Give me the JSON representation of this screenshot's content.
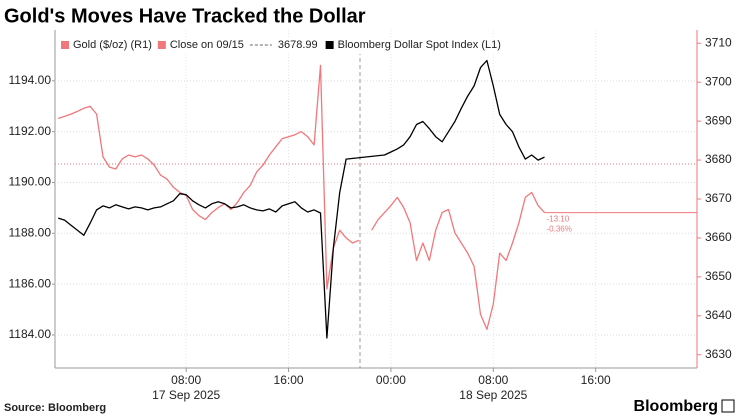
{
  "chart_data": {
    "type": "line",
    "title": "Gold's Moves Have Tracked the Dollar",
    "source": "Source: Bloomberg",
    "brand": "Bloomberg",
    "xlim": [
      "2025-09-16T21:45",
      "2025-09-18T23:55"
    ],
    "xticks": [
      {
        "value": "2025-09-17T08:00",
        "label": "08:00"
      },
      {
        "value": "2025-09-17T16:00",
        "label": "16:00"
      },
      {
        "value": "2025-09-18T00:00",
        "label": "00:00"
      },
      {
        "value": "2025-09-18T08:00",
        "label": "08:00"
      },
      {
        "value": "2025-09-18T16:00",
        "label": "16:00"
      }
    ],
    "date_labels": [
      {
        "value": "2025-09-17T08:00",
        "label": "17 Sep 2025"
      },
      {
        "value": "2025-09-18T08:00",
        "label": "18 Sep 2025"
      }
    ],
    "ylim": [
      1182.7,
      1196
    ],
    "yticks": [
      {
        "value": 1184,
        "label": "1184.00"
      },
      {
        "value": 1186,
        "label": "1186.00"
      },
      {
        "value": 1188,
        "label": "1188.00"
      },
      {
        "value": 1190,
        "label": "1190.00"
      },
      {
        "value": 1192,
        "label": "1192.00"
      },
      {
        "value": 1194,
        "label": "1194.00"
      }
    ],
    "y2lim": [
      3626.6,
      3713.4
    ],
    "y2ticks": [
      3630,
      3640,
      3650,
      3660,
      3670,
      3680,
      3690,
      3700,
      3710
    ],
    "grid": true,
    "series": [
      {
        "name": "Gold ($/oz) (R1)",
        "color": "#f2777a",
        "axis": "y2",
        "x": [
          "2025-09-16T22:00",
          "2025-09-16T22:30",
          "2025-09-16T23:00",
          "2025-09-16T23:30",
          "2025-09-17T00:00",
          "2025-09-17T00:30",
          "2025-09-17T01:00",
          "2025-09-17T01:30",
          "2025-09-17T02:00",
          "2025-09-17T02:30",
          "2025-09-17T03:00",
          "2025-09-17T03:30",
          "2025-09-17T04:00",
          "2025-09-17T04:30",
          "2025-09-17T05:00",
          "2025-09-17T05:30",
          "2025-09-17T06:00",
          "2025-09-17T06:30",
          "2025-09-17T07:00",
          "2025-09-17T07:30",
          "2025-09-17T08:00",
          "2025-09-17T08:30",
          "2025-09-17T09:00",
          "2025-09-17T09:30",
          "2025-09-17T10:00",
          "2025-09-17T10:30",
          "2025-09-17T11:00",
          "2025-09-17T11:30",
          "2025-09-17T12:00",
          "2025-09-17T12:30",
          "2025-09-17T13:00",
          "2025-09-17T13:30",
          "2025-09-17T14:00",
          "2025-09-17T14:30",
          "2025-09-17T15:00",
          "2025-09-17T15:30",
          "2025-09-17T16:00",
          "2025-09-17T16:30",
          "2025-09-17T17:00",
          "2025-09-17T17:30",
          "2025-09-17T18:00",
          "2025-09-17T18:30",
          "2025-09-17T19:00",
          "2025-09-17T19:30",
          "2025-09-17T20:00",
          "2025-09-17T20:30",
          "2025-09-17T21:00",
          "2025-09-17T21:30",
          "2025-09-17T22:00",
          "2025-09-17T22:30",
          "2025-09-17T23:00",
          "2025-09-17T23:30",
          "2025-09-18T00:00",
          "2025-09-18T00:30",
          "2025-09-18T01:00",
          "2025-09-18T01:30",
          "2025-09-18T02:00",
          "2025-09-18T02:30",
          "2025-09-18T03:00",
          "2025-09-18T03:30",
          "2025-09-18T04:00",
          "2025-09-18T04:30",
          "2025-09-18T05:00",
          "2025-09-18T05:30",
          "2025-09-18T06:00",
          "2025-09-18T06:30",
          "2025-09-18T07:00",
          "2025-09-18T07:30",
          "2025-09-18T08:00",
          "2025-09-18T08:30",
          "2025-09-18T09:00",
          "2025-09-18T09:30",
          "2025-09-18T10:00",
          "2025-09-18T10:30",
          "2025-09-18T11:00",
          "2025-09-18T11:30",
          "2025-09-18T12:00"
        ],
        "values": [
          3690.7,
          3691.2,
          3691.8,
          3692.5,
          3693.3,
          3693.8,
          3691.8,
          3680.8,
          3678.2,
          3677.7,
          3680.3,
          3681.3,
          3680.8,
          3681.3,
          3680.3,
          3678.7,
          3676.1,
          3675.1,
          3673.0,
          3671.7,
          3670.9,
          3667.3,
          3665.7,
          3664.7,
          3666.5,
          3667.8,
          3668.8,
          3667.3,
          3669.1,
          3671.7,
          3673.5,
          3676.9,
          3678.7,
          3681.3,
          3683.4,
          3685.5,
          3686.0,
          3686.5,
          3687.3,
          3686.0,
          3683.9,
          3704.3,
          3646.9,
          3657.4,
          3662.0,
          3660.0,
          3658.7,
          3659.4,
          null,
          3662.0,
          3664.7,
          3666.5,
          3668.3,
          3670.4,
          3667.8,
          3663.9,
          3654.2,
          3658.7,
          3654.2,
          3662.0,
          3666.5,
          3667.3,
          3661.3,
          3658.7,
          3656.1,
          3652.7,
          3640.4,
          3636.5,
          3643.0,
          3656.1,
          3654.2,
          3658.7,
          3663.9,
          3670.4,
          3671.7,
          3668.3,
          3666.5
        ]
      },
      {
        "name": "Bloomberg Dollar Spot Index (L1)",
        "color": "#000000",
        "axis": "y",
        "x": [
          "2025-09-16T22:00",
          "2025-09-16T22:30",
          "2025-09-16T23:00",
          "2025-09-16T23:30",
          "2025-09-17T00:00",
          "2025-09-17T00:30",
          "2025-09-17T01:00",
          "2025-09-17T01:30",
          "2025-09-17T02:00",
          "2025-09-17T02:30",
          "2025-09-17T03:00",
          "2025-09-17T03:30",
          "2025-09-17T04:00",
          "2025-09-17T04:30",
          "2025-09-17T05:00",
          "2025-09-17T05:30",
          "2025-09-17T06:00",
          "2025-09-17T06:30",
          "2025-09-17T07:00",
          "2025-09-17T07:30",
          "2025-09-17T08:00",
          "2025-09-17T08:30",
          "2025-09-17T09:00",
          "2025-09-17T09:30",
          "2025-09-17T10:00",
          "2025-09-17T10:30",
          "2025-09-17T11:00",
          "2025-09-17T11:30",
          "2025-09-17T12:00",
          "2025-09-17T12:30",
          "2025-09-17T13:00",
          "2025-09-17T13:30",
          "2025-09-17T14:00",
          "2025-09-17T14:30",
          "2025-09-17T15:00",
          "2025-09-17T15:30",
          "2025-09-17T16:00",
          "2025-09-17T16:30",
          "2025-09-17T17:00",
          "2025-09-17T17:30",
          "2025-09-17T18:00",
          "2025-09-17T18:30",
          "2025-09-17T19:00",
          "2025-09-17T19:30",
          "2025-09-17T20:00",
          "2025-09-17T20:30",
          "2025-09-17T23:30",
          "2025-09-18T00:00",
          "2025-09-18T00:30",
          "2025-09-18T01:00",
          "2025-09-18T01:30",
          "2025-09-18T02:00",
          "2025-09-18T02:30",
          "2025-09-18T03:00",
          "2025-09-18T03:30",
          "2025-09-18T04:00",
          "2025-09-18T04:30",
          "2025-09-18T05:00",
          "2025-09-18T05:30",
          "2025-09-18T06:00",
          "2025-09-18T06:30",
          "2025-09-18T07:00",
          "2025-09-18T07:30",
          "2025-09-18T08:00",
          "2025-09-18T08:30",
          "2025-09-18T09:00",
          "2025-09-18T09:30",
          "2025-09-18T10:00",
          "2025-09-18T10:30",
          "2025-09-18T11:00",
          "2025-09-18T11:30",
          "2025-09-18T12:00"
        ],
        "values": [
          1188.6,
          1188.52,
          1188.32,
          1188.12,
          1187.92,
          1188.4,
          1188.92,
          1189.08,
          1189.0,
          1189.12,
          1189.04,
          1188.96,
          1189.04,
          1189.0,
          1188.92,
          1189.0,
          1189.04,
          1189.16,
          1189.28,
          1189.56,
          1189.52,
          1189.28,
          1189.12,
          1189.0,
          1189.16,
          1189.24,
          1189.16,
          1189.0,
          1189.04,
          1189.12,
          1189.0,
          1188.92,
          1188.88,
          1188.96,
          1188.84,
          1189.08,
          1189.16,
          1189.24,
          1189.0,
          1188.84,
          1188.92,
          1188.8,
          1183.88,
          1187.4,
          1189.6,
          1190.92,
          1191.08,
          1191.2,
          1191.32,
          1191.48,
          1191.8,
          1192.28,
          1192.4,
          1192.12,
          1191.8,
          1191.6,
          1192.0,
          1192.4,
          1192.92,
          1193.4,
          1193.8,
          1194.52,
          1194.8,
          1193.8,
          1192.68,
          1192.28,
          1192.0,
          1191.4,
          1190.92,
          1191.08,
          1190.88,
          1191.0
        ]
      }
    ],
    "reference_line": {
      "label": "Close on 09/15",
      "value": 3678.99,
      "axis": "y2",
      "color": "#f2777a"
    },
    "annotations": [
      "-13.10",
      "-0.36%"
    ],
    "legend": "top-left"
  }
}
